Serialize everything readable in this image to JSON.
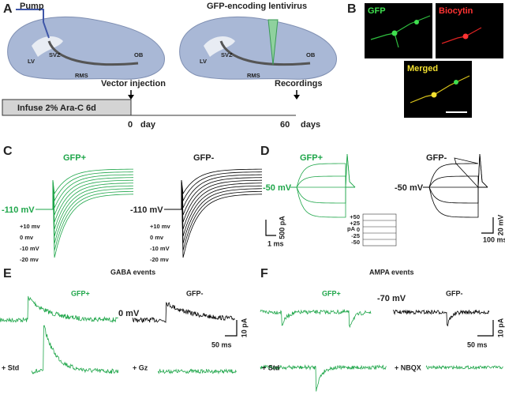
{
  "panels": {
    "A": {
      "label": "A",
      "pump": "Pump",
      "virus": "GFP-encoding lentivirus",
      "regions": [
        "LV",
        "SVZ",
        "RMS",
        "OB"
      ],
      "vector_injection": "Vector injection",
      "recordings": "Recordings",
      "infusion": "Infuse 2%  Ara-C   6d",
      "day0": "0",
      "day_unit": "day",
      "day60": "60",
      "days_unit": "days"
    },
    "B": {
      "label": "B",
      "gfp": "GFP",
      "biocytin": "Biocytin",
      "merged": "Merged"
    },
    "C": {
      "label": "C",
      "gfp_pos": "GFP+",
      "gfp_neg": "GFP-",
      "holding": "-110 mV",
      "steps": [
        "+10 mv",
        "0 mv",
        "-10 mV",
        "-20 mv"
      ],
      "scale_y": "500 pA",
      "scale_x": "1 ms"
    },
    "D": {
      "label": "D",
      "gfp_pos": "GFP+",
      "gfp_neg": "GFP-",
      "holding": "-50 mV",
      "currents": [
        "+50",
        "+25",
        "0",
        "-25",
        "-50"
      ],
      "current_unit": "pA",
      "scale_y": "20 mV",
      "scale_x": "100 ms"
    },
    "E": {
      "label": "E",
      "title": "GABA events",
      "gfp_pos": "GFP+",
      "gfp_neg": "GFP-",
      "holding": "0 mV",
      "std": "+ Std",
      "blocker": "+ Gz",
      "scale_y": "10 pA",
      "scale_x": "50 ms"
    },
    "F": {
      "label": "F",
      "title": "AMPA events",
      "gfp_pos": "GFP+",
      "gfp_neg": "GFP-",
      "holding": "-70 mV",
      "std": "+ Std",
      "blocker": "+ NBQX",
      "scale_y": "10 pA",
      "scale_x": "50 ms"
    }
  }
}
